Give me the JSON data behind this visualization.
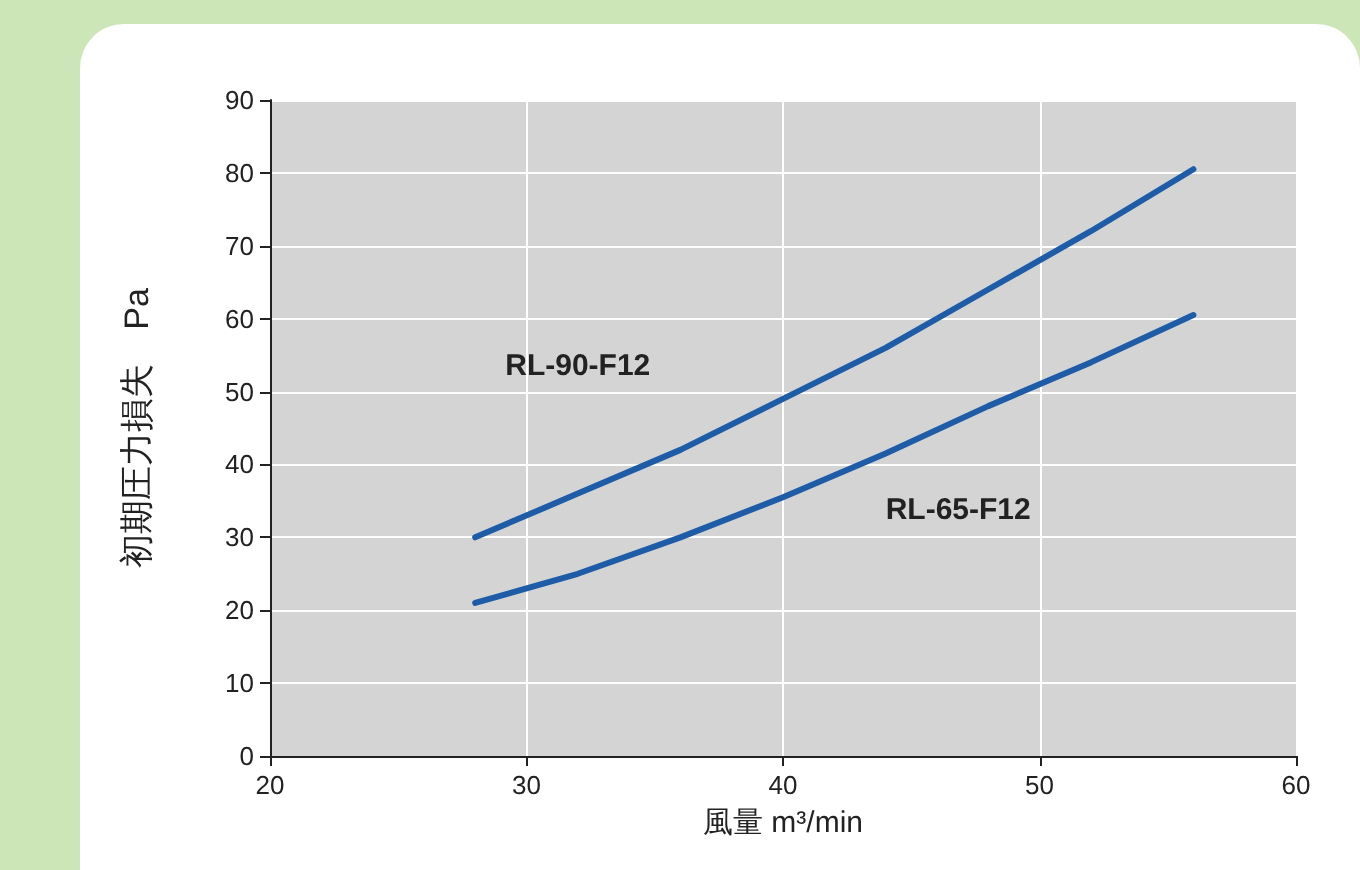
{
  "chart_data": {
    "type": "line",
    "xlabel": "風量 m³/min",
    "ylabel": "初期圧力損失　Pa",
    "xlim": [
      20,
      60
    ],
    "xticks": [
      20,
      30,
      40,
      50,
      60
    ],
    "ylim": [
      0,
      90
    ],
    "yticks": [
      0,
      10,
      20,
      30,
      40,
      50,
      60,
      70,
      80,
      90
    ],
    "grid": true,
    "legend": false,
    "marker": "none",
    "line_style": "solid",
    "series": [
      {
        "name": "RL-90-F12",
        "color": "#1f5ca8",
        "x": [
          28,
          32,
          36,
          40,
          44,
          48,
          52,
          56
        ],
        "values": [
          30,
          36,
          42,
          49,
          56,
          64,
          72,
          80.5
        ]
      },
      {
        "name": "RL-65-F12",
        "color": "#1f5ca8",
        "x": [
          28,
          32,
          36,
          40,
          44,
          48,
          52,
          56
        ],
        "values": [
          21,
          25,
          30,
          35.5,
          41.5,
          48,
          54,
          60.5
        ]
      }
    ]
  }
}
